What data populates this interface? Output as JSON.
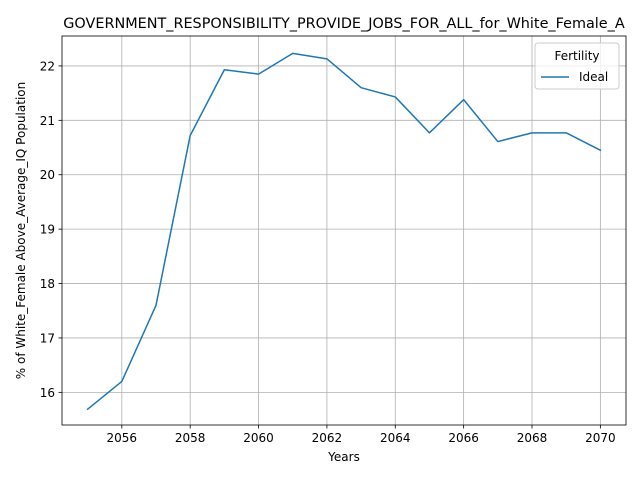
{
  "chart_data": {
    "type": "line",
    "title": "GOVERNMENT_RESPONSIBILITY_PROVIDE_JOBS_FOR_ALL_for_White_Female_A",
    "xlabel": "Years",
    "ylabel": "% of White_Female Above_Average_IQ Population",
    "xlim": [
      2054.25,
      2070.75
    ],
    "ylim": [
      15.4,
      22.55
    ],
    "xticks": [
      2056,
      2058,
      2060,
      2062,
      2064,
      2066,
      2068,
      2070
    ],
    "yticks": [
      16,
      17,
      18,
      19,
      20,
      21,
      22
    ],
    "grid": true,
    "legend": {
      "title": "Fertility",
      "placement": "top-right"
    },
    "x": [
      2055,
      2056,
      2057,
      2058,
      2059,
      2060,
      2061,
      2062,
      2063,
      2064,
      2065,
      2066,
      2067,
      2068,
      2069,
      2070
    ],
    "series": [
      {
        "name": "Ideal",
        "color": "#1f77b4",
        "values": [
          15.69,
          16.2,
          17.6,
          20.72,
          21.93,
          21.85,
          22.23,
          22.13,
          21.6,
          21.43,
          20.77,
          21.38,
          20.61,
          20.77,
          20.77,
          20.45
        ]
      }
    ]
  }
}
